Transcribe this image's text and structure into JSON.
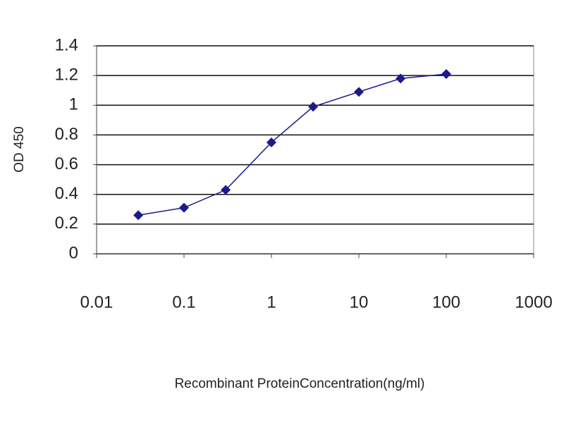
{
  "chart_data": {
    "type": "line",
    "x_label": "Recombinant ProteinConcentration(ng/ml)",
    "y_label": "OD 450",
    "x": [
      0.03,
      0.1,
      0.3,
      1,
      3,
      10,
      30,
      100
    ],
    "series": [
      {
        "color": "#1a1a8c",
        "values": [
          0.26,
          0.31,
          0.43,
          0.75,
          0.99,
          1.09,
          1.18,
          1.21
        ]
      }
    ],
    "xscale": "log",
    "xlim": [
      0.01,
      1000
    ],
    "xticks": [
      0.01,
      0.1,
      1,
      10,
      100,
      1000
    ],
    "ylim": [
      0,
      1.4
    ],
    "yticks": [
      0,
      0.2,
      0.4,
      0.6,
      0.8,
      1,
      1.2,
      1.4
    ],
    "grid": true
  }
}
